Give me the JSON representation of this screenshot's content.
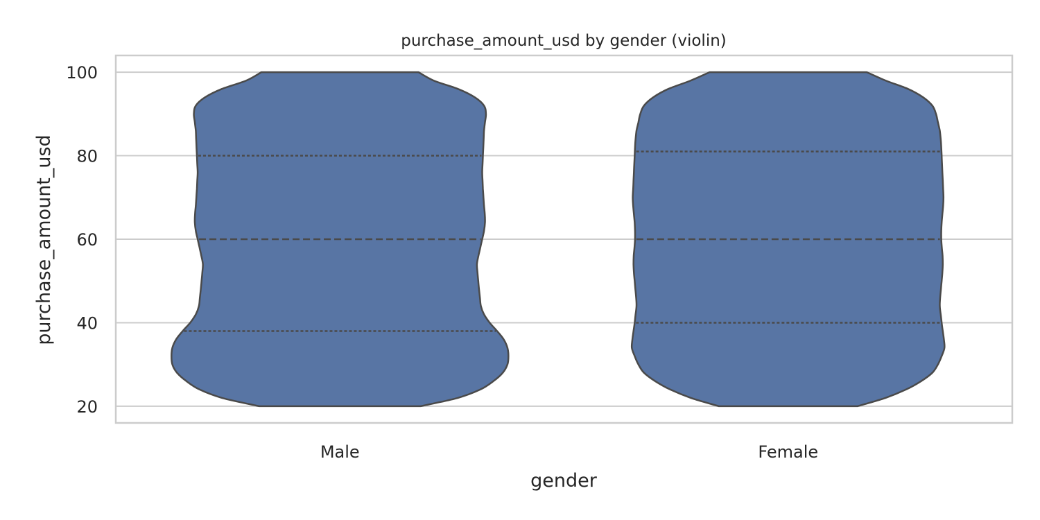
{
  "chart_data": {
    "type": "violin",
    "title": "purchase_amount_usd by gender (violin)",
    "xlabel": "gender",
    "ylabel": "purchase_amount_usd",
    "ylim": [
      16,
      104
    ],
    "yticks": [
      20,
      40,
      60,
      80,
      100
    ],
    "grid": "horizontal",
    "categories": [
      "Male",
      "Female"
    ],
    "violin_color": "#5875a4",
    "edge_color": "#4a4a4a",
    "series": [
      {
        "category": "Male",
        "quartiles": [
          38,
          60,
          80
        ],
        "density": [
          [
            20,
            0.43
          ],
          [
            22,
            0.63
          ],
          [
            24,
            0.75
          ],
          [
            26,
            0.82
          ],
          [
            28,
            0.87
          ],
          [
            30,
            0.895
          ],
          [
            32,
            0.9
          ],
          [
            34,
            0.895
          ],
          [
            36,
            0.875
          ],
          [
            38,
            0.84
          ],
          [
            40,
            0.8
          ],
          [
            42,
            0.77
          ],
          [
            44,
            0.753
          ],
          [
            46,
            0.748
          ],
          [
            48,
            0.743
          ],
          [
            50,
            0.739
          ],
          [
            52,
            0.735
          ],
          [
            54,
            0.732
          ],
          [
            56,
            0.74
          ],
          [
            58,
            0.75
          ],
          [
            60,
            0.76
          ],
          [
            62,
            0.77
          ],
          [
            64,
            0.775
          ],
          [
            66,
            0.774
          ],
          [
            68,
            0.77
          ],
          [
            70,
            0.767
          ],
          [
            72,
            0.764
          ],
          [
            74,
            0.762
          ],
          [
            76,
            0.76
          ],
          [
            78,
            0.762
          ],
          [
            80,
            0.764
          ],
          [
            82,
            0.766
          ],
          [
            84,
            0.768
          ],
          [
            86,
            0.77
          ],
          [
            88,
            0.775
          ],
          [
            90,
            0.78
          ],
          [
            92,
            0.77
          ],
          [
            94,
            0.72
          ],
          [
            96,
            0.63
          ],
          [
            98,
            0.5
          ],
          [
            100,
            0.42
          ]
        ]
      },
      {
        "category": "Female",
        "quartiles": [
          40,
          60,
          81
        ],
        "density": [
          [
            20,
            0.37
          ],
          [
            22,
            0.52
          ],
          [
            24,
            0.63
          ],
          [
            26,
            0.71
          ],
          [
            28,
            0.77
          ],
          [
            30,
            0.8
          ],
          [
            32,
            0.82
          ],
          [
            34,
            0.835
          ],
          [
            36,
            0.832
          ],
          [
            38,
            0.826
          ],
          [
            40,
            0.82
          ],
          [
            42,
            0.815
          ],
          [
            44,
            0.81
          ],
          [
            46,
            0.812
          ],
          [
            48,
            0.816
          ],
          [
            50,
            0.82
          ],
          [
            52,
            0.824
          ],
          [
            54,
            0.826
          ],
          [
            56,
            0.825
          ],
          [
            58,
            0.821
          ],
          [
            60,
            0.818
          ],
          [
            62,
            0.818
          ],
          [
            64,
            0.82
          ],
          [
            66,
            0.824
          ],
          [
            68,
            0.828
          ],
          [
            70,
            0.83
          ],
          [
            72,
            0.828
          ],
          [
            74,
            0.826
          ],
          [
            76,
            0.824
          ],
          [
            78,
            0.822
          ],
          [
            80,
            0.82
          ],
          [
            82,
            0.818
          ],
          [
            84,
            0.815
          ],
          [
            86,
            0.81
          ],
          [
            88,
            0.8
          ],
          [
            90,
            0.79
          ],
          [
            92,
            0.77
          ],
          [
            94,
            0.72
          ],
          [
            96,
            0.64
          ],
          [
            98,
            0.52
          ],
          [
            100,
            0.42
          ]
        ]
      }
    ]
  }
}
